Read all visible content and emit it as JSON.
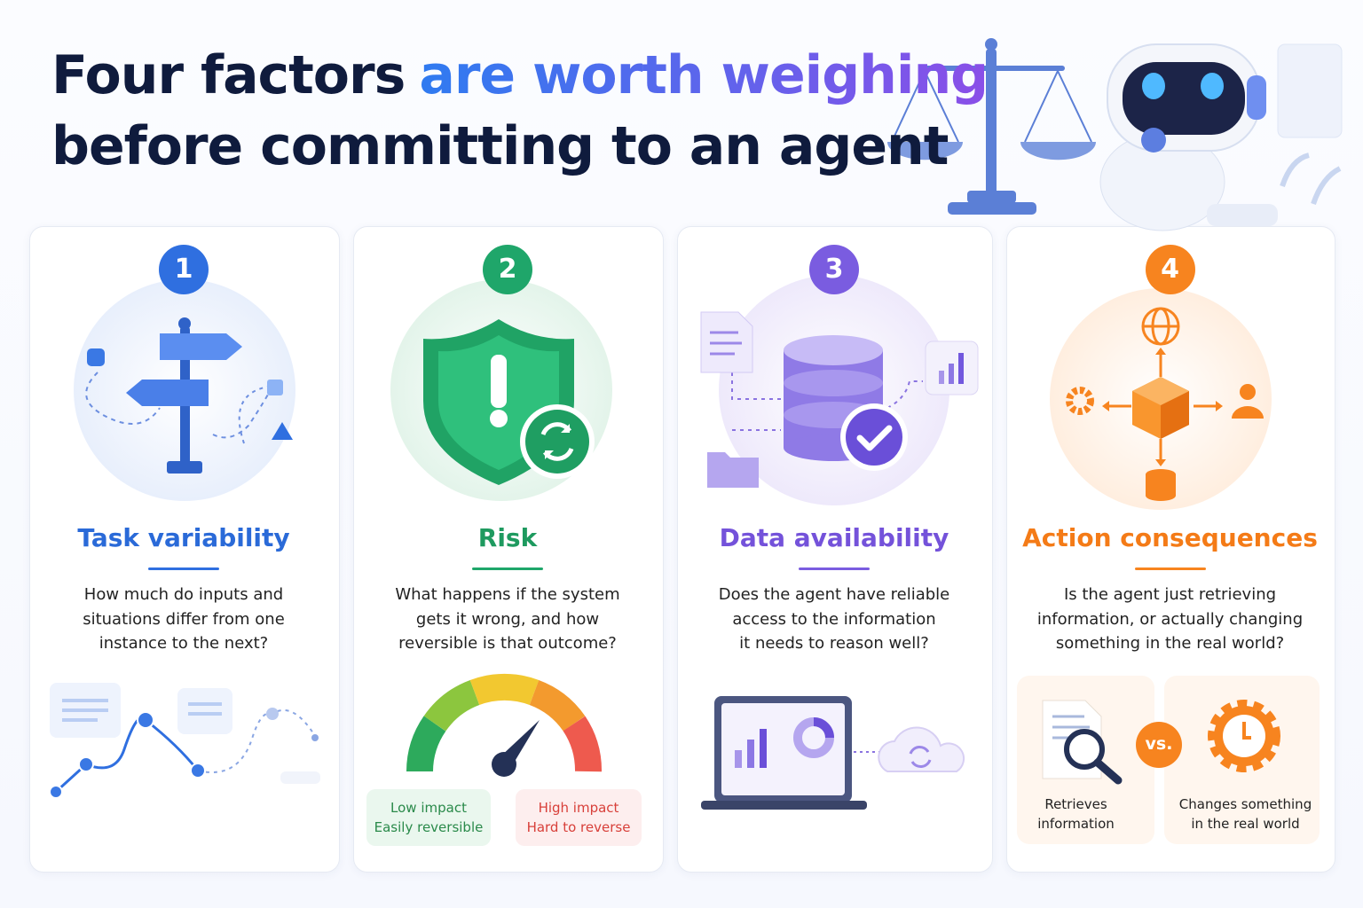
{
  "header": {
    "title": [
      "Four factors",
      "are worth weighing",
      "before committing to an agent"
    ]
  },
  "cards": [
    {
      "number": "1",
      "title": "Task variability",
      "description": [
        "How much do inputs and",
        "situations differ from one",
        "instance to the next?"
      ]
    },
    {
      "number": "2",
      "title": "Risk",
      "description": [
        "What happens if the system",
        "gets it wrong, and how",
        "reversible is that outcome?"
      ],
      "impact_labels": [
        {
          "impact": "Low impact",
          "reversibility": "Easily reversible"
        },
        {
          "impact": "High impact",
          "reversibility": "Hard to reverse"
        }
      ]
    },
    {
      "number": "3",
      "title": "Data availability",
      "description": [
        "Does the agent have reliable",
        "access to the information",
        "it needs to reason well?"
      ]
    },
    {
      "number": "4",
      "title": "Action consequences",
      "description": [
        "Is the agent just retrieving",
        "information, or actually changing",
        "something in the real world?"
      ],
      "comparison": {
        "left": [
          "Retrieves",
          "information"
        ],
        "separator": "vs.",
        "right": [
          "Changes something",
          "in the real world"
        ]
      }
    }
  ]
}
